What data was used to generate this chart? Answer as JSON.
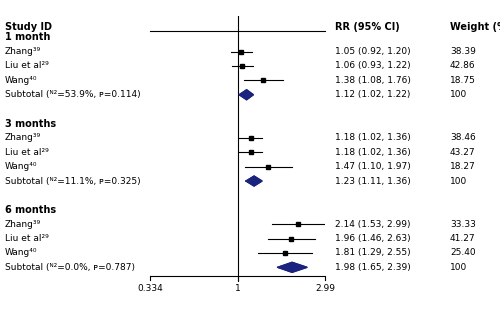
{
  "title": "",
  "col_headers": [
    "Study ID",
    "RR (95% CI)",
    "Weight (%)"
  ],
  "groups": [
    {
      "label": "1 month",
      "studies": [
        {
          "id": "Zhang³⁹",
          "mean": 1.05,
          "low": 0.92,
          "high": 1.2,
          "rr_text": "1.05 (0.92, 1.20)",
          "weight": "38.39"
        },
        {
          "id": "Liu et al²⁹",
          "mean": 1.06,
          "low": 0.93,
          "high": 1.22,
          "rr_text": "1.06 (0.93, 1.22)",
          "weight": "42.86"
        },
        {
          "id": "Wang⁴⁰",
          "mean": 1.38,
          "low": 1.08,
          "high": 1.76,
          "rr_text": "1.38 (1.08, 1.76)",
          "weight": "18.75"
        }
      ],
      "subtotal": {
        "mean": 1.12,
        "low": 1.02,
        "high": 1.22,
        "rr_text": "1.12 (1.02, 1.22)",
        "weight": "100",
        "label": "Subtotal (ᴺ²=53.9%, ᴘ=0.114)"
      },
      "i2": "53.9%",
      "p": "0.114"
    },
    {
      "label": "3 months",
      "studies": [
        {
          "id": "Zhang³⁹",
          "mean": 1.18,
          "low": 1.02,
          "high": 1.36,
          "rr_text": "1.18 (1.02, 1.36)",
          "weight": "38.46"
        },
        {
          "id": "Liu et al²⁹",
          "mean": 1.18,
          "low": 1.02,
          "high": 1.36,
          "rr_text": "1.18 (1.02, 1.36)",
          "weight": "43.27"
        },
        {
          "id": "Wang⁴⁰",
          "mean": 1.47,
          "low": 1.1,
          "high": 1.97,
          "rr_text": "1.47 (1.10, 1.97)",
          "weight": "18.27"
        }
      ],
      "subtotal": {
        "mean": 1.23,
        "low": 1.11,
        "high": 1.36,
        "rr_text": "1.23 (1.11, 1.36)",
        "weight": "100",
        "label": "Subtotal (ᴺ²=11.1%, ᴘ=0.325)"
      },
      "i2": "11.1%",
      "p": "0.325"
    },
    {
      "label": "6 months",
      "studies": [
        {
          "id": "Zhang³⁹",
          "mean": 2.14,
          "low": 1.53,
          "high": 2.99,
          "rr_text": "2.14 (1.53, 2.99)",
          "weight": "33.33",
          "arrow": true
        },
        {
          "id": "Liu et al²⁹",
          "mean": 1.96,
          "low": 1.46,
          "high": 2.63,
          "rr_text": "1.96 (1.46, 2.63)",
          "weight": "41.27"
        },
        {
          "id": "Wang⁴⁰",
          "mean": 1.81,
          "low": 1.29,
          "high": 2.55,
          "rr_text": "1.81 (1.29, 2.55)",
          "weight": "25.40"
        }
      ],
      "subtotal": {
        "mean": 1.98,
        "low": 1.65,
        "high": 2.39,
        "rr_text": "1.98 (1.65, 2.39)",
        "weight": "100",
        "label": "Subtotal (ᴺ²=0.0%, ᴘ=0.787)"
      },
      "i2": "0.0%",
      "p": "0.787"
    }
  ],
  "xmin": 0.334,
  "xmax": 2.99,
  "xref": 1.0,
  "xticks": [
    0.334,
    1,
    2.99
  ],
  "diamond_color": "#1a237e",
  "ci_color": "black",
  "text_color": "black",
  "axis_color": "black"
}
